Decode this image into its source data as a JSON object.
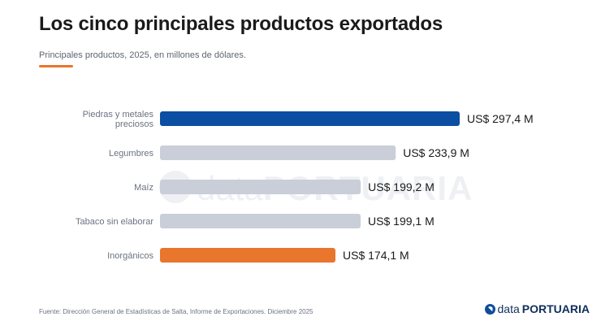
{
  "header": {
    "title": "Los cinco principales productos exportados",
    "subtitle": "Principales productos, 2025, en millones de dólares.",
    "accent_color": "#e8762c"
  },
  "watermark": {
    "prefix": "data",
    "name": "PORTUARIA"
  },
  "chart_data": {
    "type": "bar",
    "orientation": "horizontal",
    "categories": [
      [
        "Piedras y metales",
        "preciosos"
      ],
      [
        "Legumbres"
      ],
      [
        "Maíz"
      ],
      [
        "Tabaco sin elaborar"
      ],
      [
        "Inorgánicos"
      ]
    ],
    "values": [
      297.4,
      233.9,
      199.2,
      199.1,
      174.1
    ],
    "data_labels": [
      "US$ 297,4 M",
      "US$ 233,9 M",
      "US$ 199,2 M",
      "US$ 199,1 M",
      "US$ 174,1 M"
    ],
    "bar_colors": [
      "#0b4ea2",
      "#c9ced8",
      "#c9ced8",
      "#c9ced8",
      "#e8762c"
    ],
    "label_color": "#6b7280",
    "value_color": "#1a1a1a",
    "xlim": [
      0,
      297.4
    ],
    "grid": false,
    "legend": "none"
  },
  "footer": {
    "source": "Fuente: Dirección General de Estadísticas de Salta, Informe de Exportaciones. Diciembre 2025",
    "brand_prefix": "data",
    "brand_name": "PORTUARIA",
    "brand_icon": "dataportuaria-logo-icon",
    "brand_color": "#0f2f5c"
  }
}
